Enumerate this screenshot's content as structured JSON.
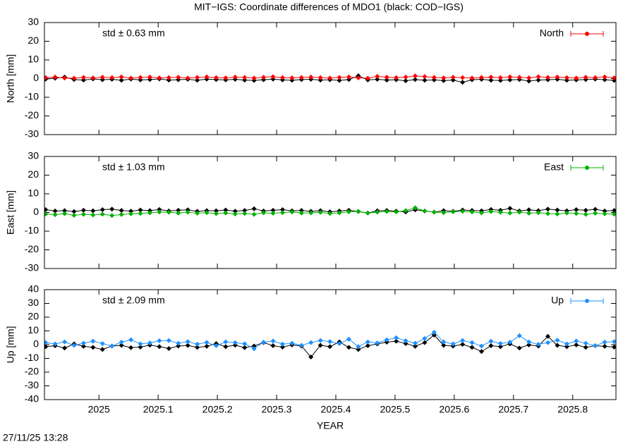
{
  "title": "MIT−IGS: Coordinate differences of MDO1 (black: COD−IGS)",
  "timestamp": "27/11/25 13:28",
  "chart_data": [
    {
      "type": "line",
      "ylabel": "North [mm]",
      "annotation": "std ± 0.63 mm",
      "legend": "top right",
      "xlim": [
        2024.908,
        2025.873
      ],
      "xticks": [
        2025,
        2025.1,
        2025.2,
        2025.3,
        2025.4,
        2025.5,
        2025.6,
        2025.7,
        2025.8
      ],
      "ylim": [
        -30,
        30
      ],
      "yticks": [
        -30,
        -20,
        -10,
        0,
        10,
        20,
        30
      ],
      "x": [
        2024.91,
        2024.926,
        2024.942,
        2024.958,
        2024.974,
        2024.99,
        2025.006,
        2025.022,
        2025.038,
        2025.054,
        2025.07,
        2025.086,
        2025.102,
        2025.118,
        2025.134,
        2025.15,
        2025.166,
        2025.182,
        2025.198,
        2025.214,
        2025.23,
        2025.246,
        2025.262,
        2025.278,
        2025.294,
        2025.31,
        2025.326,
        2025.342,
        2025.358,
        2025.374,
        2025.39,
        2025.406,
        2025.422,
        2025.438,
        2025.454,
        2025.47,
        2025.486,
        2025.502,
        2025.518,
        2025.534,
        2025.55,
        2025.566,
        2025.582,
        2025.598,
        2025.614,
        2025.63,
        2025.646,
        2025.662,
        2025.678,
        2025.694,
        2025.71,
        2025.726,
        2025.742,
        2025.758,
        2025.774,
        2025.79,
        2025.806,
        2025.822,
        2025.838,
        2025.854,
        2025.87
      ],
      "series": [
        {
          "color": "#000000",
          "values": [
            -0.3,
            0.2,
            0.8,
            -0.5,
            -0.8,
            -0.2,
            -0.6,
            -0.4,
            -0.9,
            -0.3,
            -0.7,
            -0.5,
            -0.2,
            -0.8,
            -0.6,
            -0.4,
            -0.9,
            -0.3,
            -0.5,
            -0.7,
            -0.4,
            -0.8,
            -1.0,
            -0.6,
            -0.3,
            -0.7,
            -0.9,
            -0.5,
            -0.4,
            -0.8,
            -0.6,
            -1.0,
            -0.5,
            1.5,
            -0.7,
            -0.4,
            -0.8,
            -0.6,
            -1.2,
            -0.5,
            -0.9,
            -0.7,
            -1.1,
            -0.8,
            -2.0,
            -0.6,
            -0.4,
            -0.9,
            -1.0,
            -0.7,
            -0.5,
            -1.3,
            -0.8,
            -0.6,
            -0.4,
            -0.9,
            -0.7,
            -0.5,
            -0.3,
            -0.6,
            -1.0
          ]
        },
        {
          "name": "North",
          "color": "#ff0000",
          "values": [
            0.5,
            0.8,
            0.3,
            0.2,
            0.6,
            0.4,
            0.7,
            0.5,
            0.9,
            0.3,
            0.6,
            0.8,
            0.4,
            0.5,
            0.7,
            0.3,
            0.6,
            0.9,
            0.5,
            0.4,
            0.8,
            0.6,
            0.3,
            0.7,
            1.0,
            0.5,
            0.4,
            0.6,
            0.8,
            0.5,
            0.3,
            0.6,
            0.9,
            0.4,
            0.2,
            1.2,
            0.7,
            0.5,
            0.8,
            1.4,
            1.1,
            0.6,
            0.4,
            0.7,
            0.5,
            0.3,
            0.6,
            0.8,
            0.5,
            0.9,
            0.7,
            0.4,
            1.0,
            0.6,
            0.8,
            0.5,
            0.3,
            0.7,
            0.5,
            0.9,
            0.4
          ]
        }
      ]
    },
    {
      "type": "line",
      "ylabel": "East [mm]",
      "annotation": "std ± 1.03 mm",
      "legend": "top right",
      "xlim": [
        2024.908,
        2025.873
      ],
      "xticks": [
        2025,
        2025.1,
        2025.2,
        2025.3,
        2025.4,
        2025.5,
        2025.6,
        2025.7,
        2025.8
      ],
      "ylim": [
        -30,
        30
      ],
      "yticks": [
        -30,
        -20,
        -10,
        0,
        10,
        20,
        30
      ],
      "x": [
        2024.91,
        2024.926,
        2024.942,
        2024.958,
        2024.974,
        2024.99,
        2025.006,
        2025.022,
        2025.038,
        2025.054,
        2025.07,
        2025.086,
        2025.102,
        2025.118,
        2025.134,
        2025.15,
        2025.166,
        2025.182,
        2025.198,
        2025.214,
        2025.23,
        2025.246,
        2025.262,
        2025.278,
        2025.294,
        2025.31,
        2025.326,
        2025.342,
        2025.358,
        2025.374,
        2025.39,
        2025.406,
        2025.422,
        2025.438,
        2025.454,
        2025.47,
        2025.486,
        2025.502,
        2025.518,
        2025.534,
        2025.55,
        2025.566,
        2025.582,
        2025.598,
        2025.614,
        2025.63,
        2025.646,
        2025.662,
        2025.678,
        2025.694,
        2025.71,
        2025.726,
        2025.742,
        2025.758,
        2025.774,
        2025.79,
        2025.806,
        2025.822,
        2025.838,
        2025.854,
        2025.87
      ],
      "series": [
        {
          "color": "#000000",
          "values": [
            1.5,
            0.8,
            1.0,
            0.5,
            1.2,
            0.9,
            1.5,
            1.8,
            1.1,
            0.7,
            1.3,
            1.0,
            1.6,
            0.8,
            1.2,
            1.4,
            0.6,
            1.0,
            0.9,
            1.3,
            0.7,
            1.1,
            2.0,
            0.8,
            1.2,
            1.5,
            0.9,
            1.1,
            0.6,
            1.0,
            0.4,
            0.8,
            1.2,
            0.5,
            -0.3,
            0.9,
            1.1,
            0.7,
            0.3,
            1.4,
            0.8,
            0.2,
            1.0,
            0.6,
            1.3,
            1.1,
            0.9,
            1.6,
            1.2,
            2.2,
            0.8,
            1.4,
            1.0,
            1.8,
            1.3,
            0.9,
            1.5,
            1.2,
            1.7,
            0.8,
            1.1
          ]
        },
        {
          "name": "East",
          "color": "#00b000",
          "values": [
            -0.8,
            -1.2,
            -0.6,
            -1.5,
            -1.0,
            -1.3,
            -0.9,
            -1.6,
            -1.1,
            -0.7,
            -0.5,
            -0.2,
            0.3,
            0.1,
            -0.3,
            0.2,
            -0.4,
            -0.1,
            -0.6,
            -0.3,
            -0.8,
            -0.5,
            -1.0,
            -0.2,
            -0.4,
            -0.1,
            0.3,
            -0.3,
            -0.2,
            0.1,
            -0.5,
            -0.2,
            0.4,
            0.6,
            -0.3,
            0.2,
            0.5,
            0.3,
            1.0,
            2.5,
            0.8,
            0.2,
            -0.1,
            0.4,
            0.6,
            0.3,
            -0.2,
            0.5,
            0.1,
            -0.3,
            0.2,
            -0.4,
            -0.1,
            -0.6,
            -0.8,
            -0.3,
            -0.5,
            -1.0,
            -0.4,
            -0.7,
            -0.9
          ]
        }
      ]
    },
    {
      "type": "line",
      "ylabel": "Up [mm]",
      "xlabel": "YEAR",
      "annotation": "std ± 2.09 mm",
      "legend": "top right",
      "xlim": [
        2024.908,
        2025.873
      ],
      "xticks": [
        2025,
        2025.1,
        2025.2,
        2025.3,
        2025.4,
        2025.5,
        2025.6,
        2025.7,
        2025.8
      ],
      "ylim": [
        -40,
        40
      ],
      "yticks": [
        -40,
        -30,
        -20,
        -10,
        0,
        10,
        20,
        30,
        40
      ],
      "x": [
        2024.91,
        2024.926,
        2024.942,
        2024.958,
        2024.974,
        2024.99,
        2025.006,
        2025.022,
        2025.038,
        2025.054,
        2025.07,
        2025.086,
        2025.102,
        2025.118,
        2025.134,
        2025.15,
        2025.166,
        2025.182,
        2025.198,
        2025.214,
        2025.23,
        2025.246,
        2025.262,
        2025.278,
        2025.294,
        2025.31,
        2025.326,
        2025.342,
        2025.358,
        2025.374,
        2025.39,
        2025.406,
        2025.422,
        2025.438,
        2025.454,
        2025.47,
        2025.486,
        2025.502,
        2025.518,
        2025.534,
        2025.55,
        2025.566,
        2025.582,
        2025.598,
        2025.614,
        2025.63,
        2025.646,
        2025.662,
        2025.678,
        2025.694,
        2025.71,
        2025.726,
        2025.742,
        2025.758,
        2025.774,
        2025.79,
        2025.806,
        2025.822,
        2025.838,
        2025.854,
        2025.87
      ],
      "series": [
        {
          "color": "#000000",
          "values": [
            -1.5,
            -0.8,
            -2.5,
            0.5,
            -1.2,
            -2.0,
            -3.5,
            -1.0,
            -0.5,
            -2.2,
            -1.8,
            -0.3,
            -1.5,
            -2.8,
            -1.0,
            -0.6,
            -2.0,
            -1.2,
            0.8,
            -1.5,
            -0.4,
            -2.2,
            -1.0,
            1.5,
            -0.8,
            -1.8,
            -0.2,
            -1.0,
            -9.0,
            -0.5,
            -1.5,
            2.0,
            -2.0,
            -3.5,
            -0.8,
            0.5,
            1.8,
            2.5,
            0.8,
            -1.2,
            1.5,
            7.0,
            -0.5,
            -1.0,
            0.2,
            -2.0,
            -5.0,
            -0.8,
            -1.5,
            0.5,
            -2.5,
            -0.2,
            -1.0,
            6.0,
            -0.5,
            -1.5,
            -0.2,
            -2.0,
            -0.8,
            -1.2,
            -1.8
          ]
        },
        {
          "name": "Up",
          "color": "#1e90ff",
          "values": [
            1.5,
            0.5,
            2.0,
            -0.5,
            1.0,
            2.5,
            0.8,
            -1.0,
            1.8,
            3.5,
            0.5,
            1.2,
            2.8,
            3.0,
            1.0,
            2.2,
            0.3,
            1.6,
            -0.8,
            2.0,
            1.4,
            0.6,
            -3.0,
            1.8,
            2.6,
            0.4,
            1.0,
            -0.5,
            1.5,
            3.0,
            2.2,
            0.8,
            4.0,
            -1.5,
            2.0,
            1.2,
            3.5,
            5.0,
            2.8,
            1.0,
            4.5,
            9.0,
            2.0,
            0.5,
            3.0,
            1.5,
            -1.0,
            2.5,
            0.8,
            1.8,
            6.5,
            2.0,
            0.2,
            1.5,
            3.2,
            0.5,
            2.6,
            1.0,
            -0.8,
            1.8,
            2.2
          ]
        }
      ]
    }
  ]
}
